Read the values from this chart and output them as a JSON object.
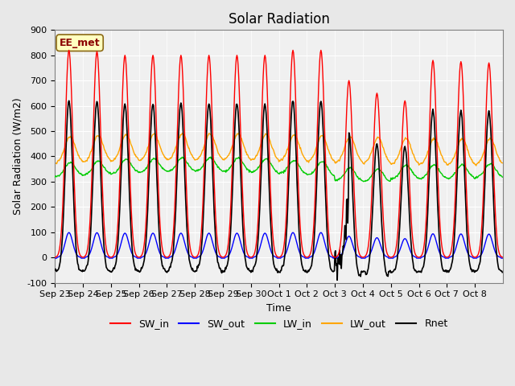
{
  "title": "Solar Radiation",
  "xlabel": "Time",
  "ylabel": "Solar Radiation (W/m2)",
  "ylim": [
    -100,
    900
  ],
  "yticks": [
    -100,
    0,
    100,
    200,
    300,
    400,
    500,
    600,
    700,
    800,
    900
  ],
  "xtick_labels": [
    "Sep 23",
    "Sep 24",
    "Sep 25",
    "Sep 26",
    "Sep 27",
    "Sep 28",
    "Sep 29",
    "Sep 30",
    "Oct 1",
    "Oct 2",
    "Oct 3",
    "Oct 4",
    "Oct 5",
    "Oct 6",
    "Oct 7",
    "Oct 8"
  ],
  "annotation_text": "EE_met",
  "annotation_color": "#8B0000",
  "annotation_bg": "#FFFFC0",
  "bg_color": "#E8E8E8",
  "plot_bg": "#F0F0F0",
  "colors": {
    "SW_in": "#FF0000",
    "SW_out": "#0000FF",
    "LW_in": "#00CC00",
    "LW_out": "#FFA500",
    "Rnet": "#000000"
  },
  "n_days": 16,
  "hours_per_day": 24,
  "dt_hours": 0.5,
  "SW_in_peaks": [
    820,
    815,
    800,
    800,
    800,
    800,
    800,
    800,
    820,
    820,
    700,
    650,
    620,
    780,
    775,
    770
  ]
}
